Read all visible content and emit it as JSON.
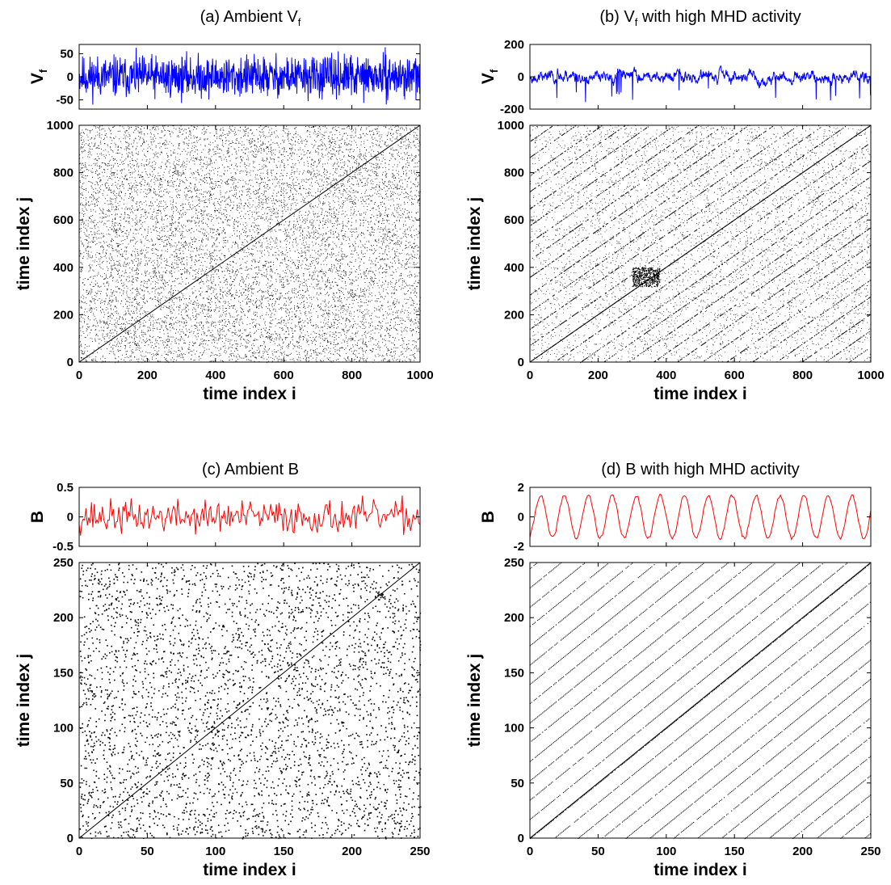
{
  "chart_data": [
    {
      "id": "a",
      "type": "scatter",
      "title_main": "(a) Ambient V",
      "title_sub": "f",
      "timeseries": {
        "ylabel_main": "V",
        "ylabel_sub": "f",
        "ylim": [
          -70,
          70
        ],
        "yticks": [
          -50,
          0,
          50
        ],
        "color": "#0000ff",
        "n_points": 1000,
        "amplitude": 22,
        "mode": "noise",
        "seed": 11
      },
      "recurrence": {
        "xlabel": "time index i",
        "ylabel": "time index j",
        "xlim": [
          0,
          1000
        ],
        "ylim": [
          0,
          1000
        ],
        "xticks": [
          0,
          200,
          400,
          600,
          800,
          1000
        ],
        "yticks": [
          0,
          200,
          400,
          600,
          800,
          1000
        ],
        "pattern": "random",
        "density": 0.045
      }
    },
    {
      "id": "b",
      "type": "scatter",
      "title_main": "(b) V",
      "title_sub": "f",
      "title_rest": " with high MHD activity",
      "timeseries": {
        "ylabel_main": "V",
        "ylabel_sub": "f",
        "ylim": [
          -200,
          200
        ],
        "yticks": [
          -200,
          0,
          200
        ],
        "color": "#0000ff",
        "n_points": 1000,
        "amplitude": 55,
        "mode": "bursty",
        "seed": 23
      },
      "recurrence": {
        "xlabel": "time index i",
        "ylabel": "time index j",
        "xlim": [
          0,
          1000
        ],
        "ylim": [
          0,
          1000
        ],
        "xticks": [
          0,
          200,
          400,
          600,
          800,
          1000
        ],
        "yticks": [
          0,
          200,
          400,
          600,
          800,
          1000
        ],
        "pattern": "diagonal-lines",
        "period": 72,
        "density": 0.55
      }
    },
    {
      "id": "c",
      "type": "scatter",
      "title_main": "(c) Ambient B",
      "timeseries": {
        "ylabel_main": "B",
        "ylim": [
          -0.5,
          0.5
        ],
        "yticks": [
          -0.5,
          0,
          0.5
        ],
        "color": "#ff0000",
        "n_points": 250,
        "amplitude": 0.14,
        "mode": "noise",
        "seed": 37
      },
      "recurrence": {
        "xlabel": "time index i",
        "ylabel": "time index j",
        "xlim": [
          0,
          250
        ],
        "ylim": [
          0,
          250
        ],
        "xticks": [
          0,
          50,
          100,
          150,
          200,
          250
        ],
        "yticks": [
          0,
          50,
          100,
          150,
          200,
          250
        ],
        "pattern": "random",
        "density": 0.03
      }
    },
    {
      "id": "d",
      "type": "scatter",
      "title_main": "(d) B with high MHD activity",
      "timeseries": {
        "ylabel_main": "B",
        "ylim": [
          -2,
          2
        ],
        "yticks": [
          -2,
          0,
          2
        ],
        "color": "#ff0000",
        "n_points": 250,
        "amplitude": 1.45,
        "mode": "sine",
        "period": 17.5,
        "seed": 41
      },
      "recurrence": {
        "xlabel": "time index i",
        "ylabel": "time index j",
        "xlim": [
          0,
          250
        ],
        "ylim": [
          0,
          250
        ],
        "xticks": [
          0,
          50,
          100,
          150,
          200,
          250
        ],
        "yticks": [
          0,
          50,
          100,
          150,
          200,
          250
        ],
        "pattern": "periodic-lines",
        "period": 17.5,
        "density": 0.9
      }
    }
  ]
}
